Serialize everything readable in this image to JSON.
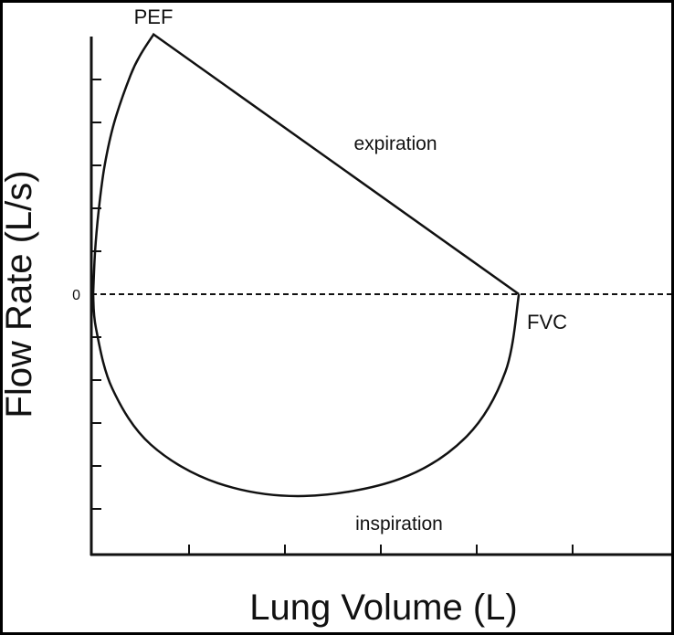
{
  "chart_data": {
    "type": "line",
    "title": "",
    "xlabel": "Lung Volume (L)",
    "ylabel": "Flow Rate (L/s)",
    "xlim": [
      0,
      6
    ],
    "ylim": [
      -6,
      6
    ],
    "x_ticks": [
      1,
      2,
      3,
      4,
      5
    ],
    "y_ticks": [
      -5,
      -4,
      -3,
      -2,
      -1,
      0,
      1,
      2,
      3,
      4,
      5
    ],
    "y_tick_labels": [
      {
        "value": 0,
        "label": "0"
      }
    ],
    "zero_line": "dashed",
    "series": [
      {
        "name": "expiration",
        "points": [
          [
            0,
            0
          ],
          [
            0.02,
            1
          ],
          [
            0.06,
            2
          ],
          [
            0.12,
            3
          ],
          [
            0.22,
            4
          ],
          [
            0.39,
            5.1
          ],
          [
            0.5,
            5.6
          ],
          [
            0.63,
            6.05
          ],
          [
            4.44,
            0
          ]
        ]
      },
      {
        "name": "inspiration",
        "points": [
          [
            4.44,
            0
          ],
          [
            4.3,
            -1.8
          ],
          [
            3.9,
            -3.3
          ],
          [
            3.2,
            -4.3
          ],
          [
            2.2,
            -4.7
          ],
          [
            1.3,
            -4.4
          ],
          [
            0.6,
            -3.5
          ],
          [
            0.2,
            -2.2
          ],
          [
            0.03,
            -0.8
          ],
          [
            0,
            0
          ]
        ]
      }
    ],
    "annotations": [
      {
        "text": "PEF",
        "x": 0.63,
        "y": 6.05
      },
      {
        "text": "expiration",
        "x": 3.4,
        "y": 3.5
      },
      {
        "text": "FVC",
        "x": 4.44,
        "y": 0
      },
      {
        "text": "inspiration",
        "x": 3.0,
        "y": -5.4
      }
    ]
  }
}
